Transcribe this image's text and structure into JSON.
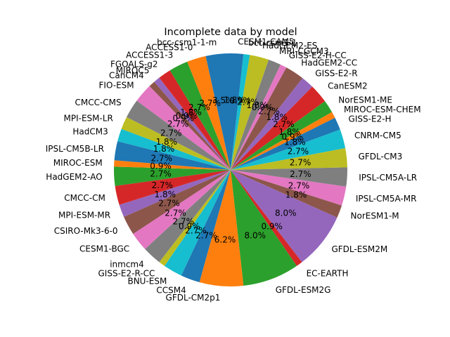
{
  "chart_data": {
    "type": "pie",
    "title": "Incomplete data by model",
    "start_angle_deg": 90,
    "direction": "clockwise",
    "slices": [
      {
        "label": "CESM1-CAM5",
        "value": 1.8,
        "pct_label": "1.8%",
        "color": "#1f77b4"
      },
      {
        "label": "bcc-csm1-1",
        "value": 0.9,
        "pct_label": "0.9%",
        "color": "#17becf"
      },
      {
        "label": "HadGEM2-ES",
        "value": 2.7,
        "pct_label": "2.7%",
        "color": "#bcbd22"
      },
      {
        "label": "MRI-CGCM3",
        "value": 1.8,
        "pct_label": "1.8%",
        "color": "#7f7f7f"
      },
      {
        "label": "GISS-E2-H-CC",
        "value": 0.9,
        "pct_label": "0.9%",
        "color": "#e377c2"
      },
      {
        "label": "HadGEM2-CC",
        "value": 2.7,
        "pct_label": "2.7%",
        "color": "#8c564b"
      },
      {
        "label": "GISS-E2-R",
        "value": 1.8,
        "pct_label": "1.8%",
        "color": "#9467bd"
      },
      {
        "label": "CanESM2",
        "value": 2.7,
        "pct_label": "2.7%",
        "color": "#d62728"
      },
      {
        "label": "NorESM1-ME",
        "value": 1.8,
        "pct_label": "1.8%",
        "color": "#2ca02c"
      },
      {
        "label": "MIROC-ESM-CHEM",
        "value": 0.9,
        "pct_label": "0.9%",
        "color": "#ff7f0e"
      },
      {
        "label": "GISS-E2-H",
        "value": 1.8,
        "pct_label": "1.8%",
        "color": "#1f77b4"
      },
      {
        "label": "CNRM-CM5",
        "value": 2.7,
        "pct_label": "2.7%",
        "color": "#17becf"
      },
      {
        "label": "GFDL-CM3",
        "value": 2.7,
        "pct_label": "2.7%",
        "color": "#bcbd22"
      },
      {
        "label": "IPSL-CM5A-LR",
        "value": 2.7,
        "pct_label": "2.7%",
        "color": "#7f7f7f"
      },
      {
        "label": "IPSL-CM5A-MR",
        "value": 2.7,
        "pct_label": "2.7%",
        "color": "#e377c2"
      },
      {
        "label": "NorESM1-M",
        "value": 1.8,
        "pct_label": "1.8%",
        "color": "#8c564b"
      },
      {
        "label": "GFDL-ESM2M",
        "value": 8.0,
        "pct_label": "8.0%",
        "color": "#9467bd"
      },
      {
        "label": "EC-EARTH",
        "value": 0.9,
        "pct_label": "0.9%",
        "color": "#d62728"
      },
      {
        "label": "GFDL-ESM2G",
        "value": 8.0,
        "pct_label": "8.0%",
        "color": "#2ca02c"
      },
      {
        "label": "GFDL-CM2p1",
        "value": 6.2,
        "pct_label": "6.2%",
        "color": "#ff7f0e"
      },
      {
        "label": "CCSM4",
        "value": 2.7,
        "pct_label": "2.7%",
        "color": "#1f77b4"
      },
      {
        "label": "BNU-ESM",
        "value": 2.7,
        "pct_label": "2.7%",
        "color": "#17becf"
      },
      {
        "label": "GISS-E2-R-CC",
        "value": 0.9,
        "pct_label": "0.9%",
        "color": "#bcbd22"
      },
      {
        "label": "inmcm4",
        "value": 2.7,
        "pct_label": "2.7%",
        "color": "#7f7f7f"
      },
      {
        "label": "CESM1-BGC",
        "value": 2.7,
        "pct_label": "2.7%",
        "color": "#e377c2"
      },
      {
        "label": "CSIRO-Mk3-6-0",
        "value": 2.7,
        "pct_label": "2.7%",
        "color": "#8c564b"
      },
      {
        "label": "MPI-ESM-MR",
        "value": 1.8,
        "pct_label": "1.8%",
        "color": "#9467bd"
      },
      {
        "label": "CMCC-CM",
        "value": 2.7,
        "pct_label": "2.7%",
        "color": "#d62728"
      },
      {
        "label": "HadGEM2-AO",
        "value": 2.7,
        "pct_label": "2.7%",
        "color": "#2ca02c"
      },
      {
        "label": "MIROC-ESM",
        "value": 0.9,
        "pct_label": "0.9%",
        "color": "#ff7f0e"
      },
      {
        "label": "IPSL-CM5B-LR",
        "value": 2.7,
        "pct_label": "2.7%",
        "color": "#1f77b4"
      },
      {
        "label": "HadCM3",
        "value": 1.8,
        "pct_label": "1.8%",
        "color": "#17becf"
      },
      {
        "label": "MPI-ESM-LR",
        "value": 1.8,
        "pct_label": "1.8%",
        "color": "#bcbd22"
      },
      {
        "label": "CMCC-CMS",
        "value": 2.7,
        "pct_label": "2.7%",
        "color": "#7f7f7f"
      },
      {
        "label": "FIO-ESM",
        "value": 2.7,
        "pct_label": "2.7%",
        "color": "#e377c2"
      },
      {
        "label": "CanCM4",
        "value": 0.9,
        "pct_label": "0.9%",
        "color": "#8c564b"
      },
      {
        "label": "MIROC5",
        "value": 0.9,
        "pct_label": "0.9%",
        "color": "#9467bd"
      },
      {
        "label": "FGOALS-g2",
        "value": 1.8,
        "pct_label": "1.8%",
        "color": "#d62728"
      },
      {
        "label": "ACCESS1-3",
        "value": 2.7,
        "pct_label": "2.7%",
        "color": "#2ca02c"
      },
      {
        "label": "ACCESS1-0",
        "value": 2.7,
        "pct_label": "2.7%",
        "color": "#ff7f0e"
      },
      {
        "label": "bcc-csm1-1-m",
        "value": 3.5,
        "pct_label": "3.5%",
        "color": "#1f77b4"
      }
    ]
  }
}
